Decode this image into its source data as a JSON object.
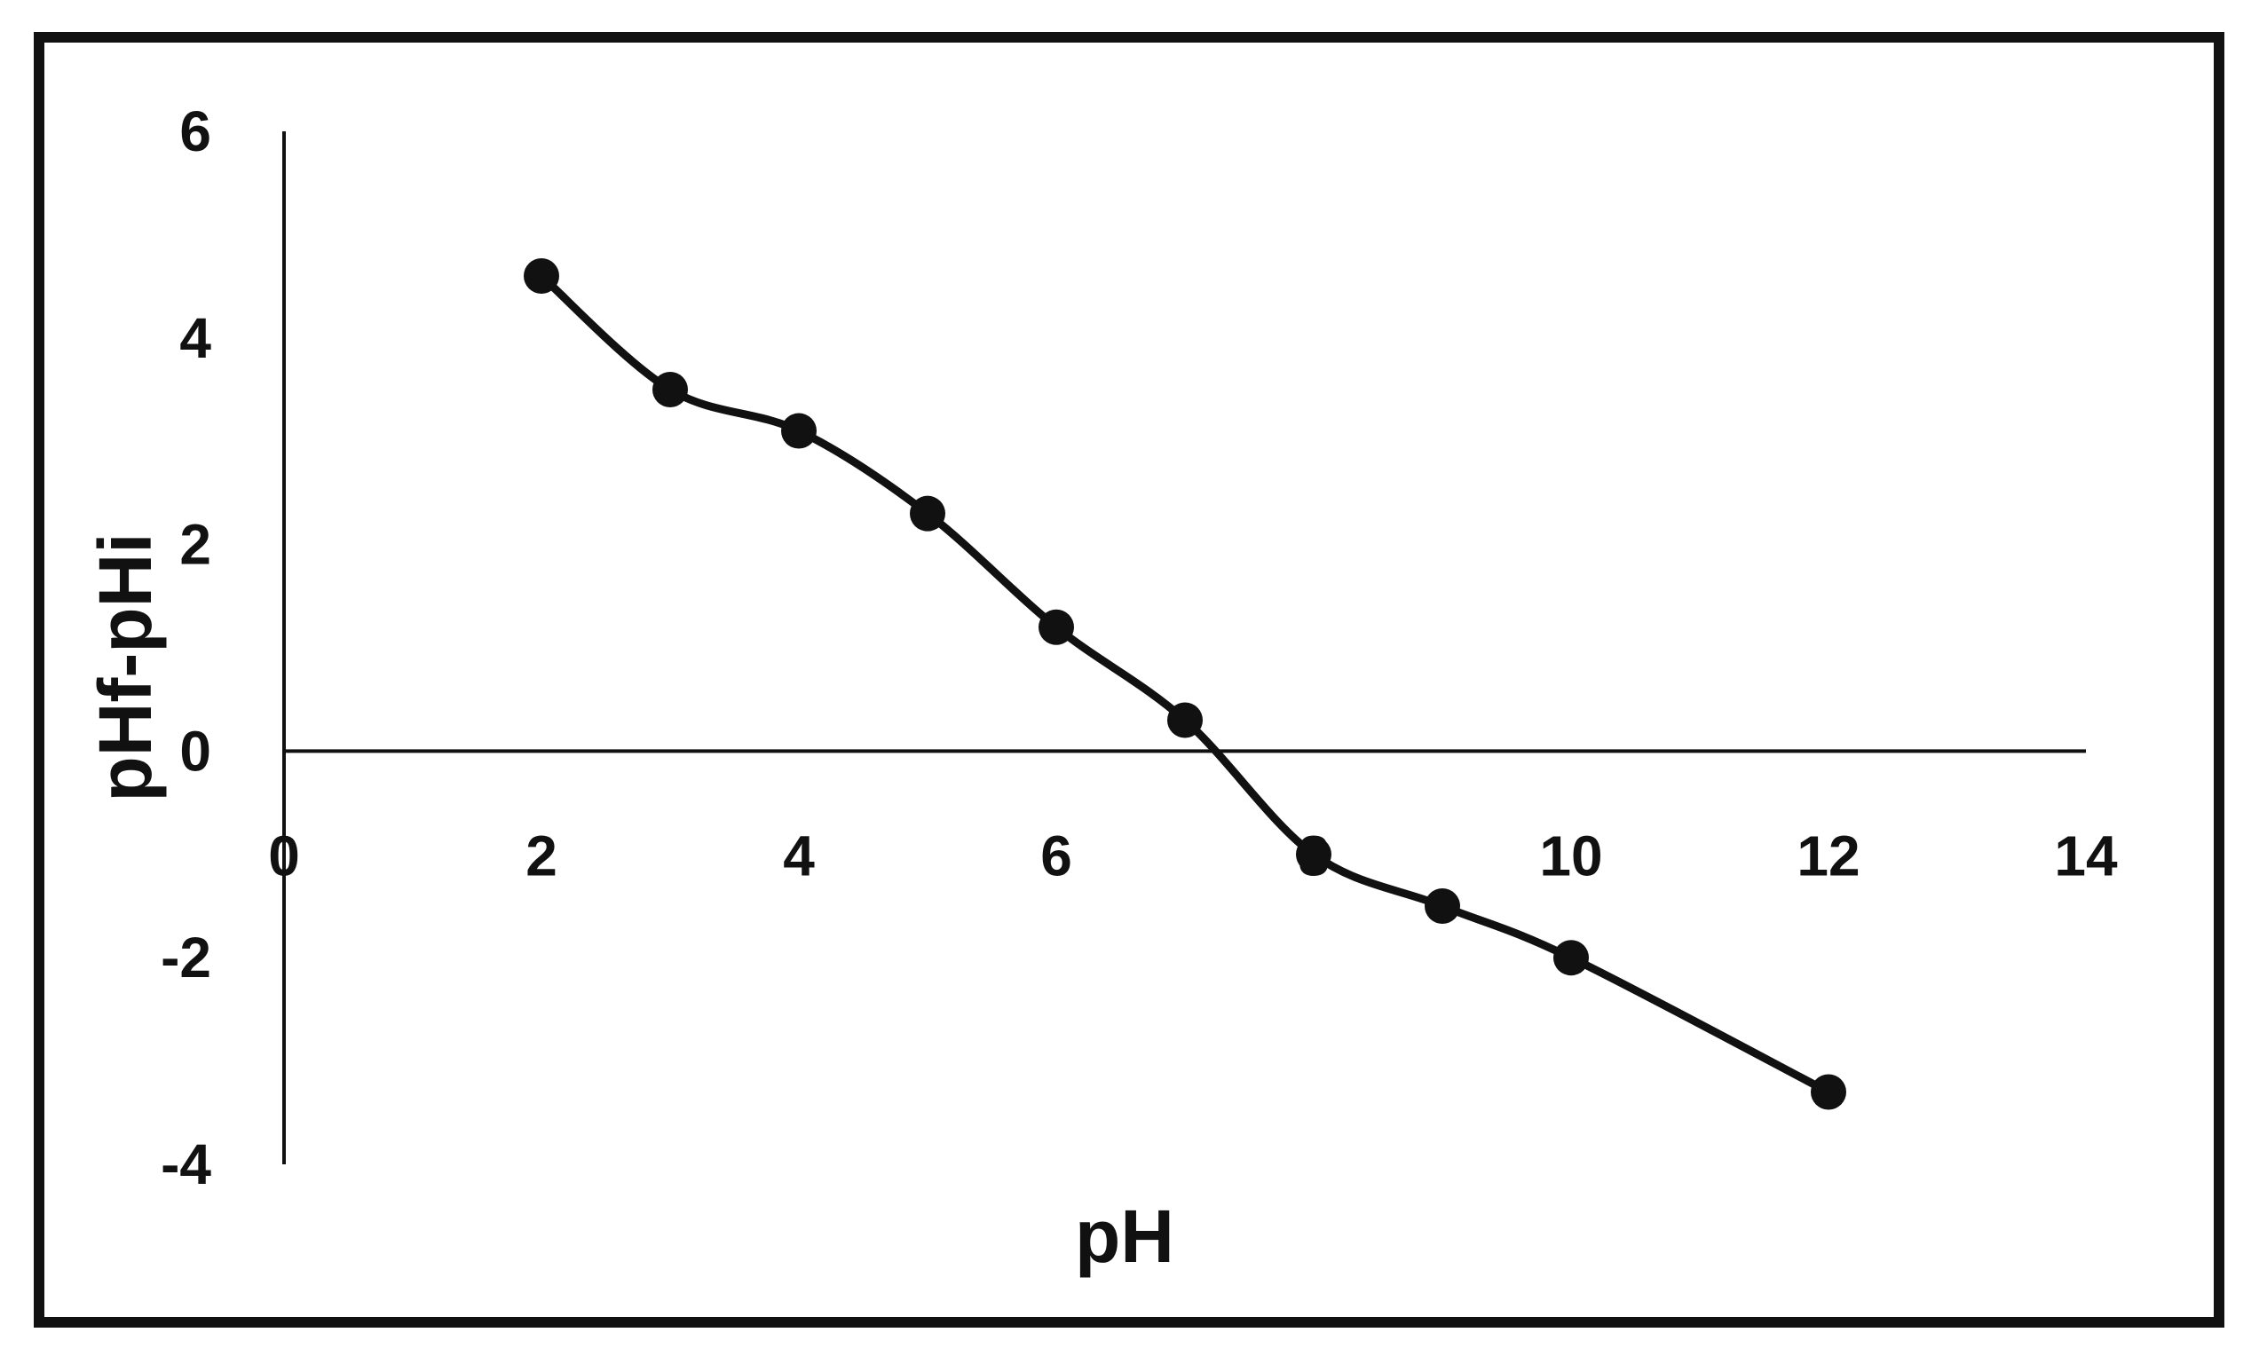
{
  "chart_data": {
    "type": "line",
    "title": "",
    "xlabel": "pH",
    "ylabel": "pHf-pHi",
    "xlim": [
      0,
      14
    ],
    "ylim": [
      -4,
      6
    ],
    "xticks": [
      0,
      2,
      4,
      6,
      8,
      10,
      12,
      14
    ],
    "yticks": [
      -4,
      -2,
      0,
      2,
      4,
      6
    ],
    "xtick_labels": [
      "0",
      "2",
      "4",
      "6",
      "8",
      "10",
      "12",
      "14"
    ],
    "ytick_labels": [
      "-4",
      "-2",
      "0",
      "2",
      "4",
      "6"
    ],
    "grid": false,
    "legend": "none",
    "series": [
      {
        "x": [
          2,
          3,
          4,
          5,
          6,
          7,
          8,
          9,
          10,
          12
        ],
        "y": [
          4.6,
          3.5,
          3.1,
          2.3,
          1.2,
          0.3,
          -1.0,
          -1.5,
          -2.0,
          -3.3
        ]
      }
    ],
    "colors": {
      "line": "#111111",
      "marker": "#111111",
      "frame": "#111111"
    }
  }
}
